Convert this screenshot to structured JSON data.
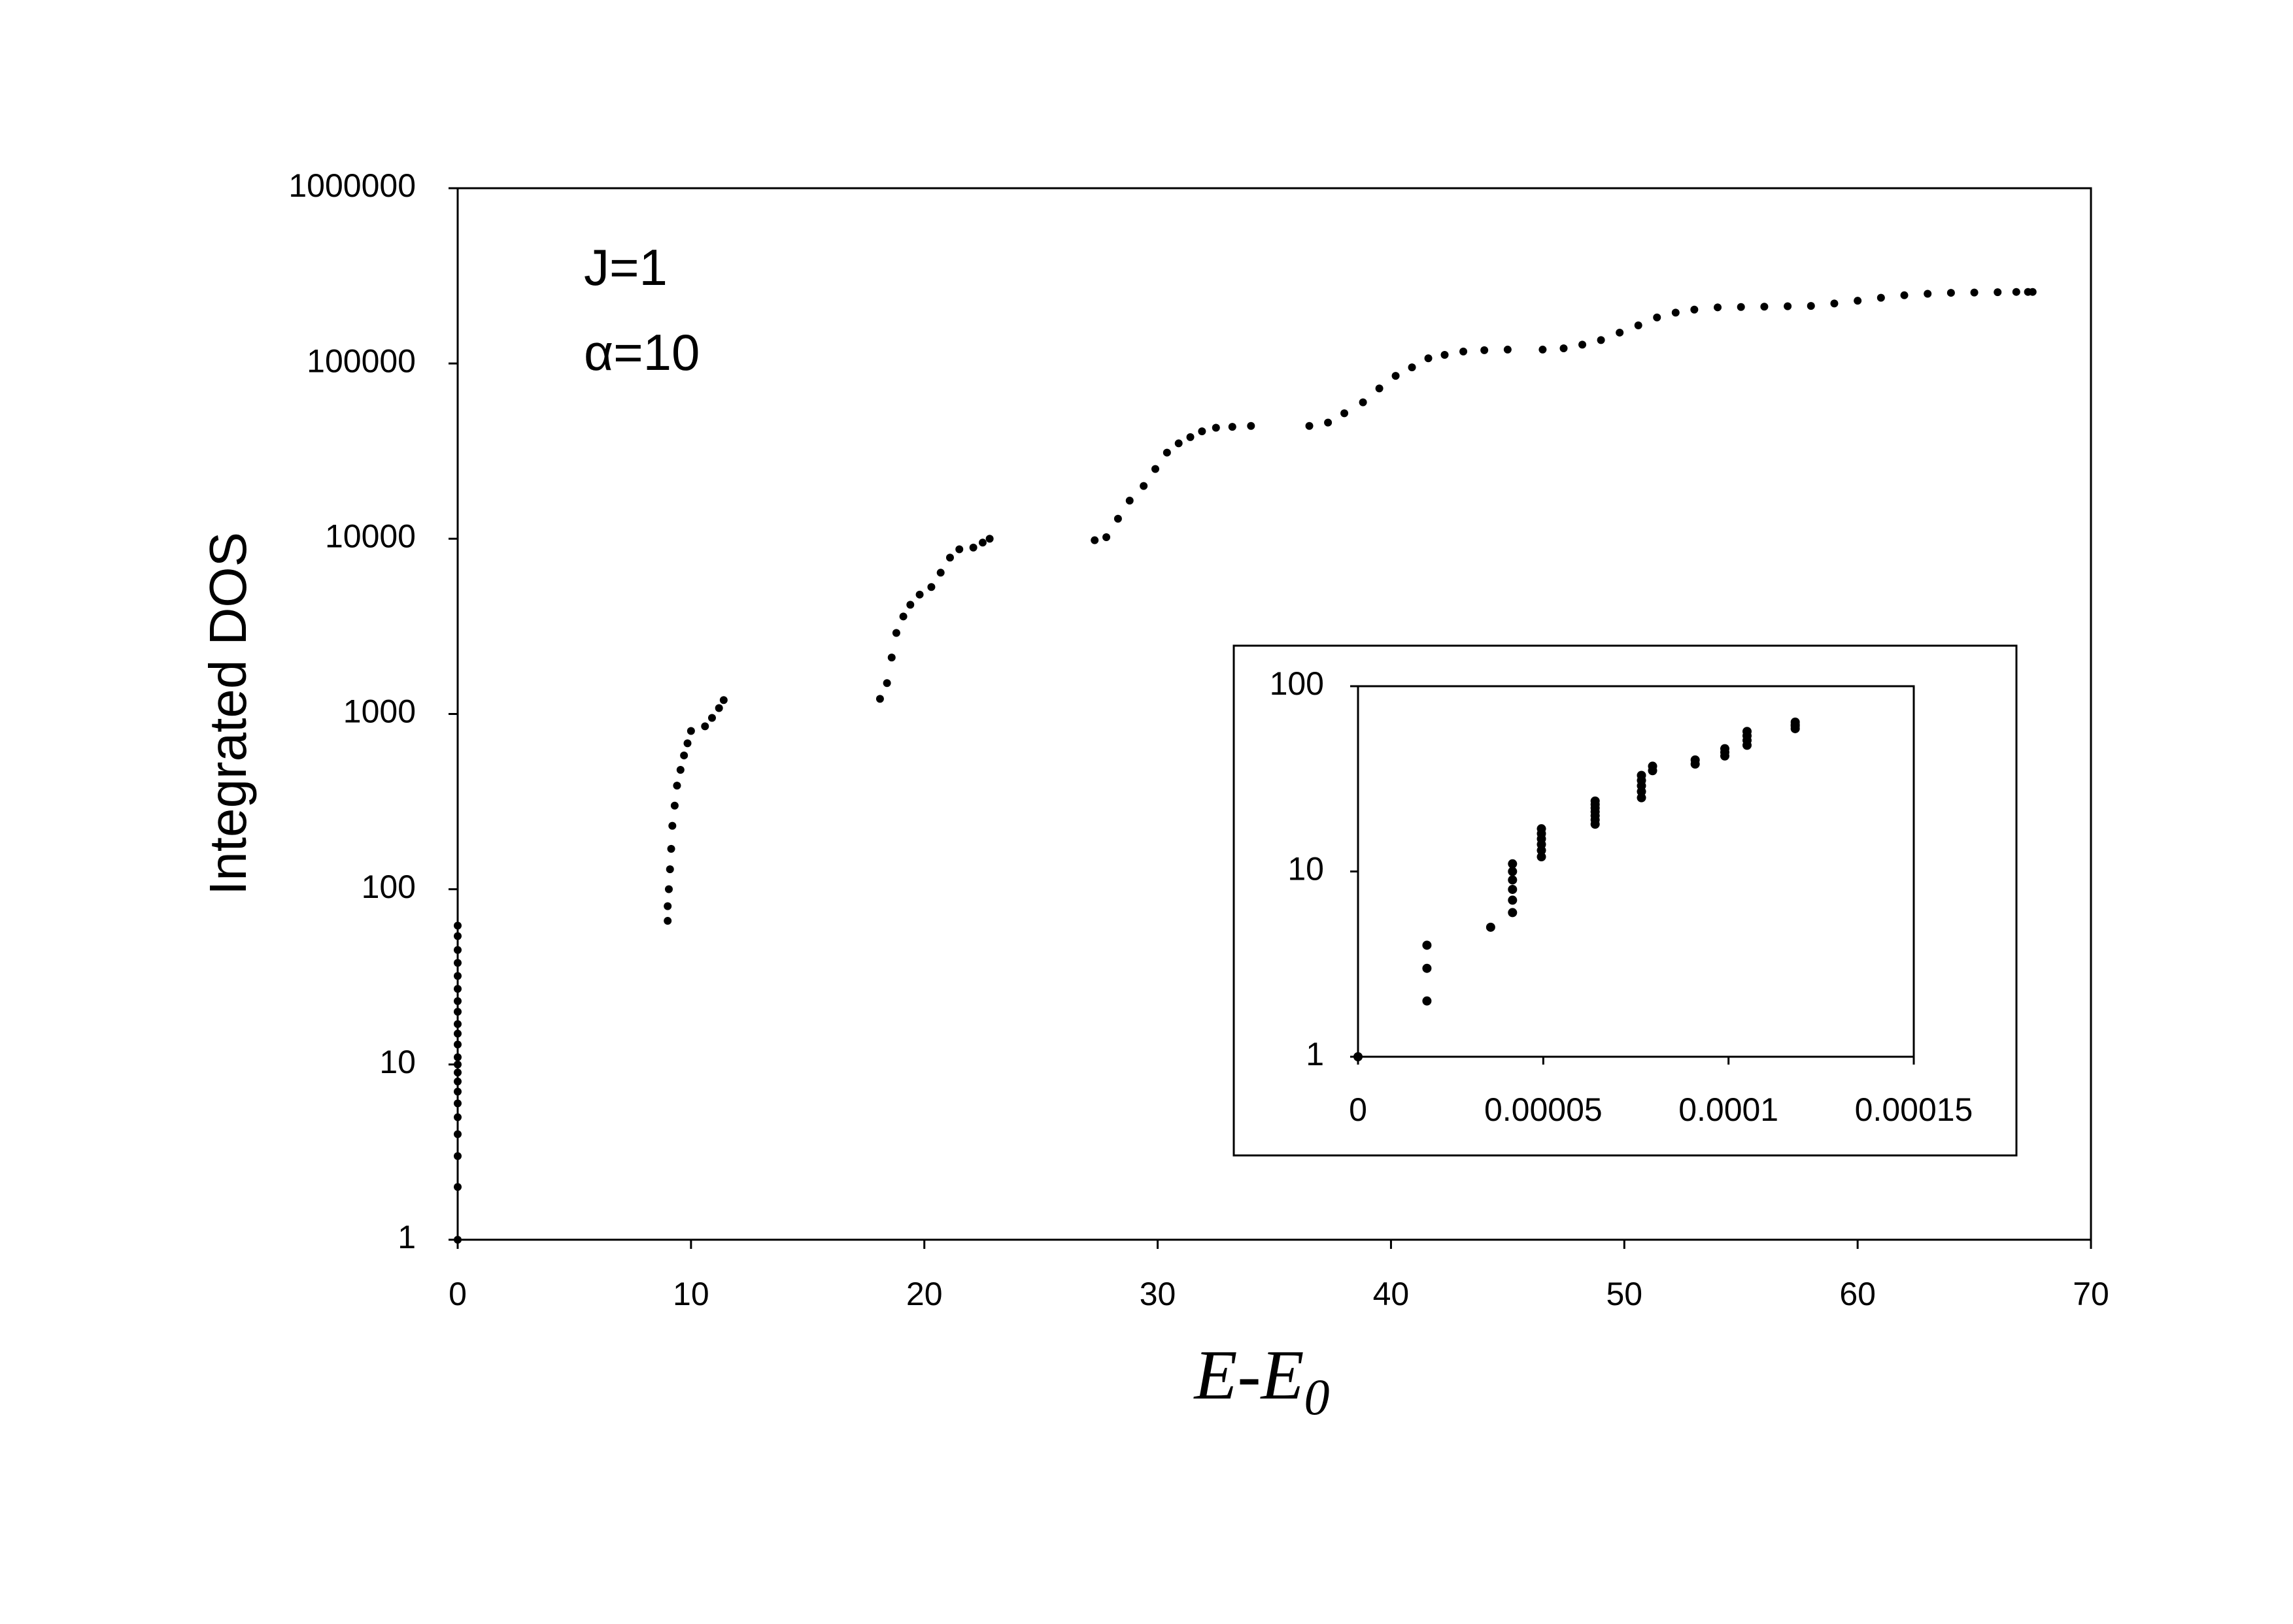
{
  "chart_data": [
    {
      "id": "main",
      "type": "scatter",
      "xlabel": "E-E",
      "xlabel_sub": "0",
      "ylabel": "Integrated DOS",
      "xlim": [
        0,
        70
      ],
      "ylim": [
        1,
        1000000
      ],
      "yscale": "log",
      "grid": false,
      "legend": "none",
      "x_ticks": [
        "0",
        "10",
        "20",
        "30",
        "40",
        "50",
        "60",
        "70"
      ],
      "y_ticks": [
        "1",
        "10",
        "100",
        "1000",
        "10000",
        "100000",
        "1000000"
      ],
      "annotations": [
        {
          "name": "j-value",
          "text": "J=1"
        },
        {
          "name": "alpha-value",
          "text": "α=10"
        }
      ],
      "marker_color": "#000000",
      "series": [
        {
          "points": [
            [
              0,
              1
            ],
            [
              0,
              2
            ],
            [
              0,
              3
            ],
            [
              0,
              4
            ],
            [
              0,
              5
            ],
            [
              0,
              6
            ],
            [
              0,
              7
            ],
            [
              0,
              8
            ],
            [
              0,
              9
            ],
            [
              0,
              10
            ],
            [
              0,
              11
            ],
            [
              0,
              13
            ],
            [
              0,
              15
            ],
            [
              0,
              17
            ],
            [
              0,
              20
            ],
            [
              0,
              23
            ],
            [
              0,
              27
            ],
            [
              0,
              32
            ],
            [
              0,
              38
            ],
            [
              0,
              45
            ],
            [
              0,
              54
            ],
            [
              0,
              62
            ],
            [
              9.0,
              66
            ],
            [
              9.0,
              80
            ],
            [
              9.05,
              100
            ],
            [
              9.1,
              130
            ],
            [
              9.15,
              170
            ],
            [
              9.2,
              230
            ],
            [
              9.3,
              300
            ],
            [
              9.4,
              390
            ],
            [
              9.55,
              480
            ],
            [
              9.7,
              580
            ],
            [
              9.85,
              680
            ],
            [
              10.0,
              800
            ],
            [
              10.6,
              850
            ],
            [
              10.9,
              950
            ],
            [
              11.2,
              1080
            ],
            [
              11.4,
              1200
            ],
            [
              18.1,
              1220
            ],
            [
              18.4,
              1500
            ],
            [
              18.6,
              2100
            ],
            [
              18.8,
              2900
            ],
            [
              19.1,
              3600
            ],
            [
              19.4,
              4200
            ],
            [
              19.8,
              4800
            ],
            [
              20.3,
              5300
            ],
            [
              20.7,
              6400
            ],
            [
              21.1,
              7800
            ],
            [
              21.5,
              8700
            ],
            [
              22.1,
              8900
            ],
            [
              22.5,
              9500
            ],
            [
              22.8,
              10000
            ],
            [
              27.3,
              9800
            ],
            [
              27.8,
              10200
            ],
            [
              28.3,
              13000
            ],
            [
              28.8,
              16500
            ],
            [
              29.4,
              20000
            ],
            [
              29.9,
              25000
            ],
            [
              30.4,
              31000
            ],
            [
              30.9,
              35000
            ],
            [
              31.4,
              38000
            ],
            [
              31.9,
              41000
            ],
            [
              32.5,
              43000
            ],
            [
              33.2,
              43500
            ],
            [
              34.0,
              44000
            ],
            [
              36.5,
              44000
            ],
            [
              37.3,
              46000
            ],
            [
              38.0,
              52000
            ],
            [
              38.8,
              60000
            ],
            [
              39.5,
              72000
            ],
            [
              40.2,
              85000
            ],
            [
              40.9,
              95000
            ],
            [
              41.6,
              107000
            ],
            [
              42.3,
              112000
            ],
            [
              43.1,
              117000
            ],
            [
              44.0,
              119000
            ],
            [
              45.0,
              120000
            ],
            [
              46.5,
              120000
            ],
            [
              47.4,
              122000
            ],
            [
              48.2,
              128000
            ],
            [
              49.0,
              136000
            ],
            [
              49.8,
              150000
            ],
            [
              50.6,
              165000
            ],
            [
              51.4,
              183000
            ],
            [
              52.2,
              195000
            ],
            [
              53.0,
              203000
            ],
            [
              54.0,
              209000
            ],
            [
              55.0,
              210000
            ],
            [
              56.0,
              211000
            ],
            [
              57.0,
              212000
            ],
            [
              58.0,
              213000
            ],
            [
              59.0,
              220000
            ],
            [
              60.0,
              228000
            ],
            [
              61.0,
              237000
            ],
            [
              62.0,
              245000
            ],
            [
              63.0,
              250000
            ],
            [
              64.0,
              253000
            ],
            [
              65.0,
              254000
            ],
            [
              66.0,
              255000
            ],
            [
              66.8,
              256000
            ],
            [
              67.3,
              256000
            ],
            [
              67.5,
              256000
            ]
          ]
        }
      ]
    },
    {
      "id": "inset",
      "type": "scatter",
      "xlim": [
        0,
        0.00015
      ],
      "ylim": [
        1,
        100
      ],
      "yscale": "log",
      "grid": false,
      "legend": "none",
      "x_ticks": [
        "0",
        "0.00005",
        "0.0001",
        "0.00015"
      ],
      "y_ticks": [
        "1",
        "10",
        "100"
      ],
      "series": [
        {
          "points": [
            [
              0,
              1
            ],
            [
              1.86e-05,
              2
            ],
            [
              1.86e-05,
              3
            ],
            [
              1.86e-05,
              4
            ],
            [
              3.58e-05,
              5
            ],
            [
              4.17e-05,
              6
            ],
            [
              4.17e-05,
              7
            ],
            [
              4.17e-05,
              8
            ],
            [
              4.17e-05,
              9
            ],
            [
              4.17e-05,
              10
            ],
            [
              4.17e-05,
              11
            ],
            [
              4.95e-05,
              12
            ],
            [
              4.95e-05,
              13
            ],
            [
              4.95e-05,
              14
            ],
            [
              4.95e-05,
              15
            ],
            [
              4.95e-05,
              16
            ],
            [
              4.95e-05,
              17
            ],
            [
              6.4e-05,
              18
            ],
            [
              6.4e-05,
              19
            ],
            [
              6.4e-05,
              20
            ],
            [
              6.4e-05,
              21
            ],
            [
              6.4e-05,
              22
            ],
            [
              6.4e-05,
              23
            ],
            [
              6.4e-05,
              24
            ],
            [
              7.65e-05,
              25
            ],
            [
              7.65e-05,
              27
            ],
            [
              7.65e-05,
              29
            ],
            [
              7.65e-05,
              31
            ],
            [
              7.65e-05,
              33
            ],
            [
              7.95e-05,
              35
            ],
            [
              7.95e-05,
              37
            ],
            [
              9.1e-05,
              38
            ],
            [
              9.1e-05,
              40
            ],
            [
              9.9e-05,
              42
            ],
            [
              9.9e-05,
              44
            ],
            [
              9.9e-05,
              46
            ],
            [
              0.000105,
              48
            ],
            [
              0.000105,
              51
            ],
            [
              0.000105,
              54
            ],
            [
              0.000105,
              57
            ],
            [
              0.000118,
              59
            ],
            [
              0.000118,
              61
            ],
            [
              0.000118,
              62
            ],
            [
              0.000118,
              64
            ]
          ]
        }
      ]
    }
  ]
}
